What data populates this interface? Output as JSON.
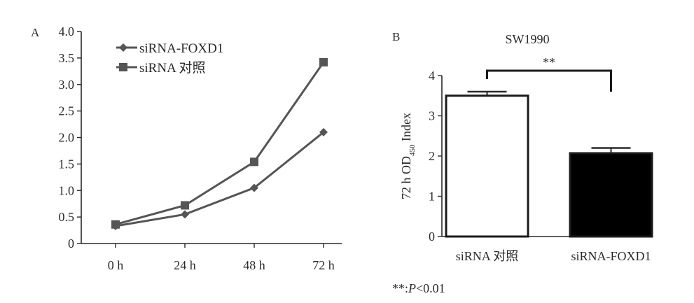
{
  "chart_data": [
    {
      "panel_label": "A",
      "type": "line",
      "title": "",
      "xlabel": "",
      "ylabel": "",
      "categories": [
        "0 h",
        "24 h",
        "48 h",
        "72 h"
      ],
      "y_ticks": [
        "0",
        "0.5",
        "1.0",
        "1.5",
        "2.0",
        "2.5",
        "3.0",
        "3.5",
        "4.0"
      ],
      "ylim": [
        0,
        4.0
      ],
      "grid": false,
      "legend_position": "top-left",
      "series": [
        {
          "name": "siRNA-FOXD1",
          "marker": "diamond",
          "color": "#555555",
          "values": [
            0.33,
            0.55,
            1.05,
            2.1
          ]
        },
        {
          "name": "siRNA 对照",
          "marker": "square",
          "color": "#555555",
          "values": [
            0.36,
            0.72,
            1.54,
            3.42
          ]
        }
      ]
    },
    {
      "panel_label": "B",
      "type": "bar",
      "title": "SW1990",
      "xlabel": "",
      "ylabel_main": "72 h OD",
      "ylabel_sub": "450",
      "ylabel_tail": " Index",
      "categories": [
        "siRNA 对照",
        "siRNA-FOXD1"
      ],
      "values": [
        3.5,
        2.07
      ],
      "errors": [
        0.1,
        0.13
      ],
      "bar_fills": [
        "#ffffff",
        "#000000"
      ],
      "y_ticks": [
        "0",
        "1",
        "2",
        "3",
        "4"
      ],
      "ylim": [
        0,
        4
      ],
      "significance": "**",
      "footnote_prefix": "**:",
      "footnote_p": "P",
      "footnote_rest": "<0.01"
    }
  ]
}
